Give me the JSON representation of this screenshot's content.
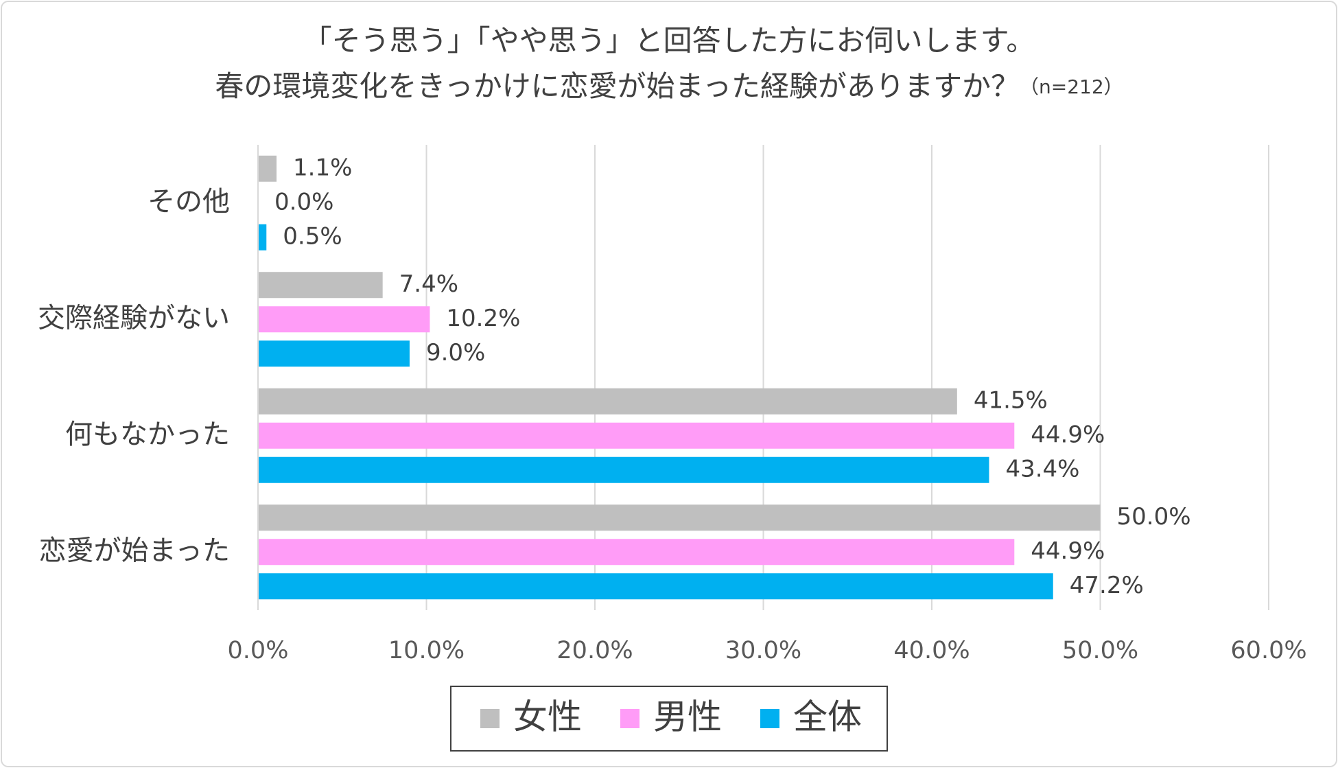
{
  "chart_data": {
    "type": "hbar",
    "title": [
      "「そう思う」「やや思う」と回答した方にお伺いします。",
      "春の環境変化をきっかけに恋愛が始まった経験がありますか？"
    ],
    "note": "（n=212）",
    "categories": [
      "その他",
      "交際経験がない",
      "何もなかった",
      "恋愛が始まった"
    ],
    "series": [
      {
        "name": "女性",
        "color": "#bfbfbf",
        "values": [
          1.1,
          7.4,
          41.5,
          50.0
        ],
        "value_labels": [
          "1.1%",
          "7.4%",
          "41.5%",
          "50.0%"
        ]
      },
      {
        "name": "男性",
        "color": "#ff9cf7",
        "values": [
          0.0,
          10.2,
          44.9,
          44.9
        ],
        "value_labels": [
          "0.0%",
          "10.2%",
          "44.9%",
          "44.9%"
        ]
      },
      {
        "name": "全体",
        "color": "#00b0f0",
        "values": [
          0.5,
          9.0,
          43.4,
          47.2
        ],
        "value_labels": [
          "0.5%",
          "9.0%",
          "43.4%",
          "47.2%"
        ]
      }
    ],
    "xlim": [
      0,
      60
    ],
    "xticks": [
      {
        "value": 0,
        "label": "0.0%"
      },
      {
        "value": 10,
        "label": "10.0%"
      },
      {
        "value": 20,
        "label": "20.0%"
      },
      {
        "value": 30,
        "label": "30.0%"
      },
      {
        "value": 40,
        "label": "40.0%"
      },
      {
        "value": 50,
        "label": "50.0%"
      },
      {
        "value": 60,
        "label": "60.0%"
      }
    ],
    "grid": true,
    "legend": "bottom"
  }
}
